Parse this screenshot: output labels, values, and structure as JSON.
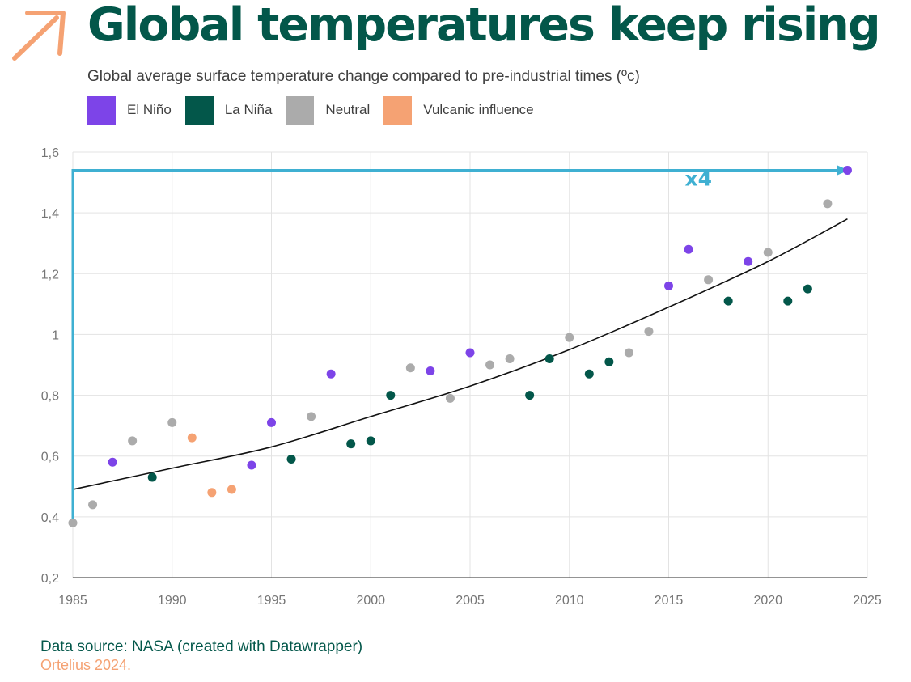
{
  "header": {
    "title": "Global temperatures keep rising",
    "subtitle": "Global average surface temperature change compared to pre-industrial times (ºc)"
  },
  "logo": {
    "icon": "arrow-up-right-icon",
    "color": "#f5a273"
  },
  "legend": [
    {
      "label": "El Niño",
      "color": "#7d44e8"
    },
    {
      "label": "La Niña",
      "color": "#03574a"
    },
    {
      "label": "Neutral",
      "color": "#ababab"
    },
    {
      "label": "Vulcanic influence",
      "color": "#f5a273"
    }
  ],
  "chart_data": {
    "type": "scatter",
    "x_ticks": [
      "1985",
      "1990",
      "1995",
      "2000",
      "2005",
      "2010",
      "2015",
      "2020",
      "2025"
    ],
    "y_ticks": [
      "0,2",
      "0,4",
      "0,6",
      "0,8",
      "1",
      "1,2",
      "1,4",
      "1,6"
    ],
    "xlim": [
      1985,
      2025
    ],
    "ylim": [
      0.2,
      1.6
    ],
    "grid": true,
    "series": [
      {
        "name": "El Niño",
        "color": "#7d44e8",
        "points": [
          [
            1987,
            0.58
          ],
          [
            1994,
            0.57
          ],
          [
            1995,
            0.71
          ],
          [
            1998,
            0.87
          ],
          [
            2003,
            0.88
          ],
          [
            2005,
            0.94
          ],
          [
            2015,
            1.16
          ],
          [
            2016,
            1.28
          ],
          [
            2019,
            1.24
          ],
          [
            2024,
            1.54
          ]
        ]
      },
      {
        "name": "La Niña",
        "color": "#03574a",
        "points": [
          [
            1989,
            0.53
          ],
          [
            1996,
            0.59
          ],
          [
            1999,
            0.64
          ],
          [
            2000,
            0.65
          ],
          [
            2001,
            0.8
          ],
          [
            2008,
            0.8
          ],
          [
            2009,
            0.92
          ],
          [
            2011,
            0.87
          ],
          [
            2012,
            0.91
          ],
          [
            2018,
            1.11
          ],
          [
            2021,
            1.11
          ],
          [
            2022,
            1.15
          ]
        ]
      },
      {
        "name": "Neutral",
        "color": "#ababab",
        "points": [
          [
            1985,
            0.38
          ],
          [
            1986,
            0.44
          ],
          [
            1988,
            0.65
          ],
          [
            1990,
            0.71
          ],
          [
            1997,
            0.73
          ],
          [
            2002,
            0.89
          ],
          [
            2004,
            0.79
          ],
          [
            2006,
            0.9
          ],
          [
            2007,
            0.92
          ],
          [
            2010,
            0.99
          ],
          [
            2013,
            0.94
          ],
          [
            2014,
            1.01
          ],
          [
            2017,
            1.18
          ],
          [
            2020,
            1.27
          ],
          [
            2023,
            1.43
          ]
        ]
      },
      {
        "name": "Vulcanic influence",
        "color": "#f5a273",
        "points": [
          [
            1991,
            0.66
          ],
          [
            1992,
            0.48
          ],
          [
            1993,
            0.49
          ]
        ]
      }
    ],
    "trend_line": {
      "color": "#111111",
      "points": [
        [
          1985,
          0.49
        ],
        [
          1990,
          0.56
        ],
        [
          1995,
          0.63
        ],
        [
          2000,
          0.73
        ],
        [
          2005,
          0.83
        ],
        [
          2010,
          0.95
        ],
        [
          2015,
          1.09
        ],
        [
          2020,
          1.24
        ],
        [
          2024,
          1.38
        ]
      ]
    },
    "annotation": {
      "label": "x4",
      "color": "#3fb0d2",
      "label_at": [
        2016.5,
        1.49
      ],
      "path": [
        [
          1985,
          0.38
        ],
        [
          1985,
          1.54
        ],
        [
          2023.9,
          1.54
        ]
      ]
    }
  },
  "footer": {
    "source": "Data source: NASA (created with Datawrapper)",
    "credit": "Ortelius 2024."
  }
}
